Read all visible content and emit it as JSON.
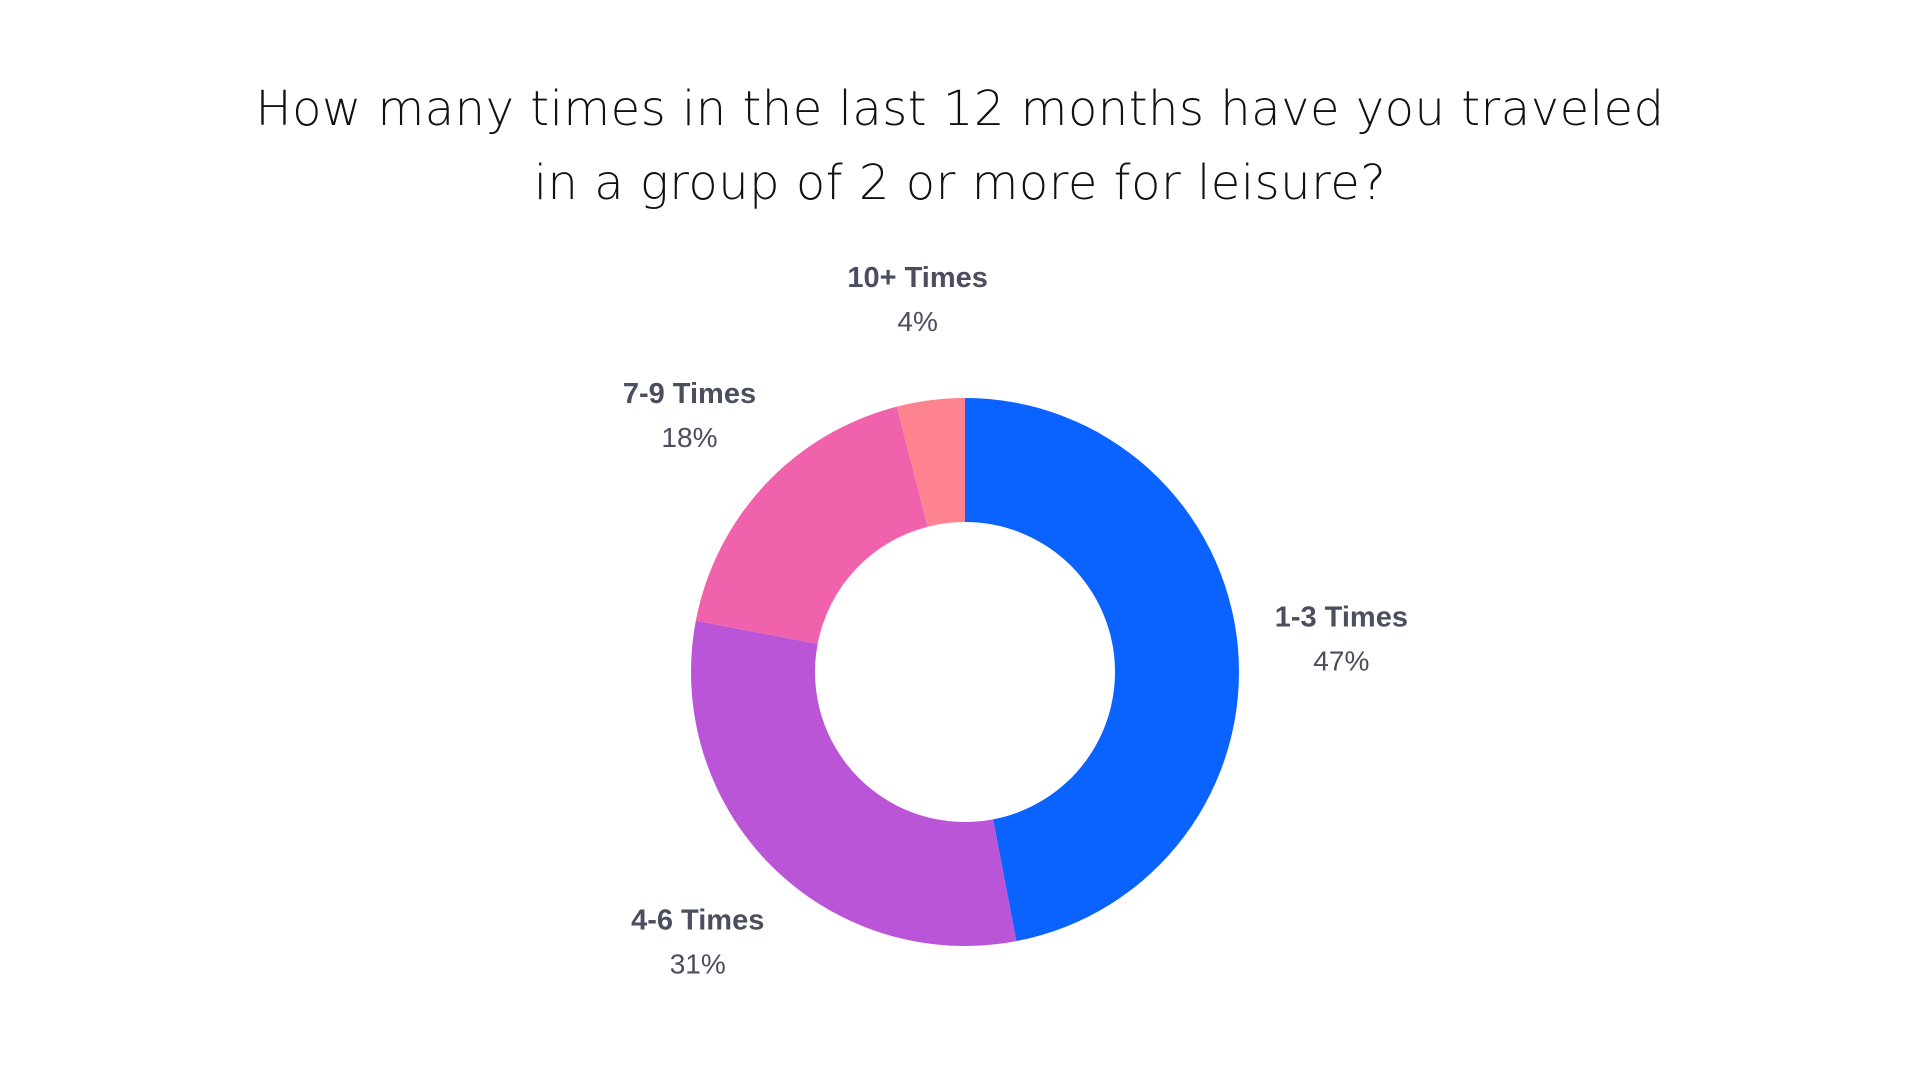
{
  "chart_data": {
    "type": "pie",
    "variant": "donut",
    "title_lines": [
      "How many times in the last 12 months have you traveled",
      "in a group of 2 or more for leisure?"
    ],
    "slices": [
      {
        "label": "1-3 Times",
        "value": 47,
        "value_label": "47%",
        "color": "#0a62ff"
      },
      {
        "label": "4-6 Times",
        "value": 31,
        "value_label": "31%",
        "color": "#bb55d8"
      },
      {
        "label": "7-9 Times",
        "value": 18,
        "value_label": "18%",
        "color": "#f162ad"
      },
      {
        "label": "10+ Times",
        "value": 4,
        "value_label": "4%",
        "color": "#ff828f"
      }
    ],
    "start_angle": "12 o'clock",
    "direction": "clockwise",
    "legend": "none",
    "labels": "outside"
  }
}
